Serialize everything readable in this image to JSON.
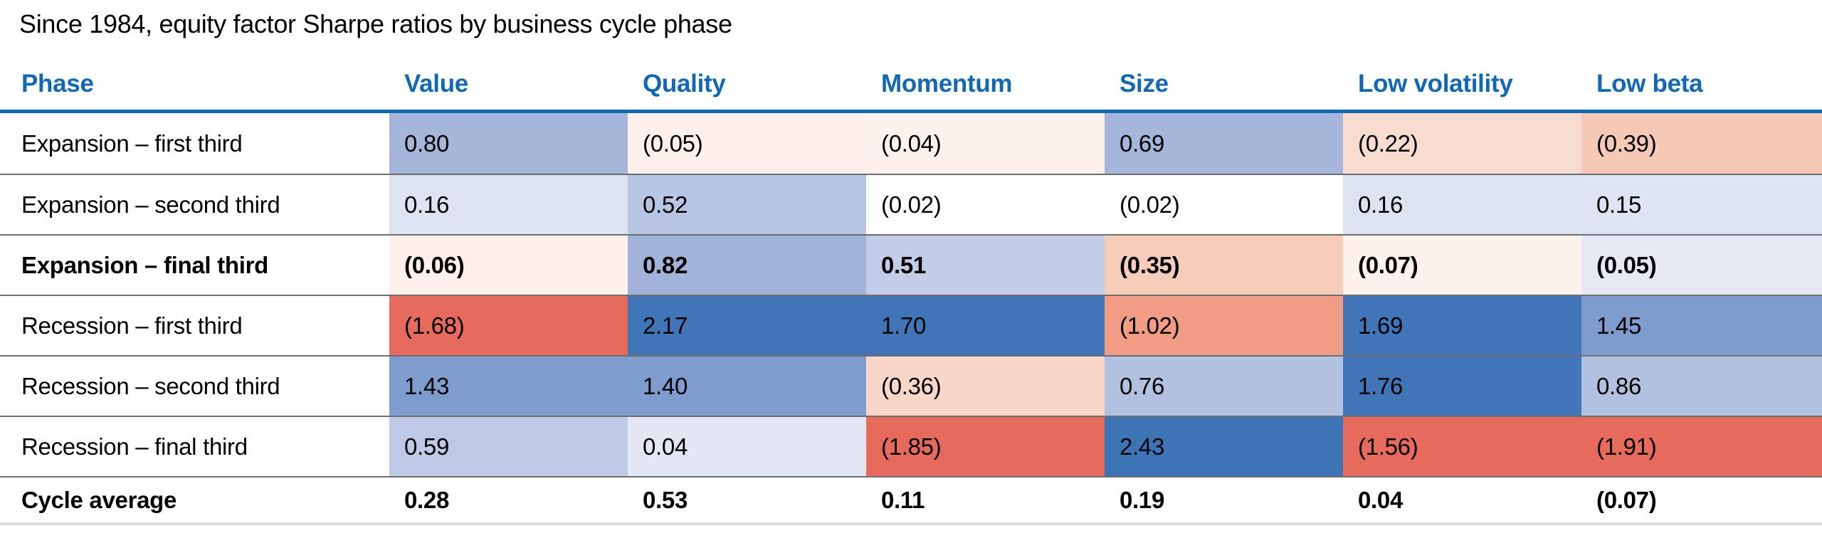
{
  "title": "Since 1984, equity factor Sharpe ratios by business cycle phase",
  "colors": {
    "header_blue": "#1268b3",
    "row_divider": "#6e6e6e",
    "bottom_rule": "#d9d9d9",
    "strong_blue": "#4076b7",
    "strong_red": "#e76b5d"
  },
  "table": {
    "headers": [
      "Phase",
      "Value",
      "Quality",
      "Momentum",
      "Size",
      "Low volatility",
      "Low beta"
    ],
    "rows": [
      {
        "label": "Expansion – first third",
        "bold": false,
        "cells": [
          {
            "value": "0.80",
            "bg": "#a6b6db"
          },
          {
            "value": "(0.05)",
            "bg": "#fdf0ed"
          },
          {
            "value": "(0.04)",
            "bg": "#fdf1ee"
          },
          {
            "value": "0.69",
            "bg": "#a6b6db"
          },
          {
            "value": "(0.22)",
            "bg": "#f8dcd0"
          },
          {
            "value": "(0.39)",
            "bg": "#f5c9b6"
          }
        ]
      },
      {
        "label": "Expansion – second third",
        "bold": false,
        "cells": [
          {
            "value": "0.16",
            "bg": "#dde3f1"
          },
          {
            "value": "0.52",
            "bg": "#b9c5e4"
          },
          {
            "value": "(0.02)",
            "bg": "#ffffff"
          },
          {
            "value": "(0.02)",
            "bg": "#ffffff"
          },
          {
            "value": "0.16",
            "bg": "#dde3f1"
          },
          {
            "value": "0.15",
            "bg": "#dee4f2"
          }
        ]
      },
      {
        "label": "Expansion – final third",
        "bold": true,
        "cells": [
          {
            "value": "(0.06)",
            "bg": "#fdf0ec"
          },
          {
            "value": "0.82",
            "bg": "#a2b3d9"
          },
          {
            "value": "0.51",
            "bg": "#c3cde8"
          },
          {
            "value": "(0.35)",
            "bg": "#f6cdbb"
          },
          {
            "value": "(0.07)",
            "bg": "#fdf1ee"
          },
          {
            "value": "(0.05)",
            "bg": "#e6e9f4"
          }
        ]
      },
      {
        "label": "Recession – first third",
        "bold": false,
        "cells": [
          {
            "value": "(1.68)",
            "bg": "#e76b5d"
          },
          {
            "value": "2.17",
            "bg": "#4076b7"
          },
          {
            "value": "1.70",
            "bg": "#4076b7"
          },
          {
            "value": "(1.02)",
            "bg": "#f19d86"
          },
          {
            "value": "1.69",
            "bg": "#4076b7"
          },
          {
            "value": "1.45",
            "bg": "#7f9cce"
          }
        ]
      },
      {
        "label": "Recession – second third",
        "bold": false,
        "cells": [
          {
            "value": "1.43",
            "bg": "#7f9cce"
          },
          {
            "value": "1.40",
            "bg": "#7f9cce"
          },
          {
            "value": "(0.36)",
            "bg": "#f8d7c8"
          },
          {
            "value": "0.76",
            "bg": "#b3c1e1"
          },
          {
            "value": "1.76",
            "bg": "#4076b7"
          },
          {
            "value": "0.86",
            "bg": "#b3c1e1"
          }
        ]
      },
      {
        "label": "Recession – final third",
        "bold": false,
        "cells": [
          {
            "value": "0.59",
            "bg": "#bec9e6"
          },
          {
            "value": "0.04",
            "bg": "#e3e7f3"
          },
          {
            "value": "(1.85)",
            "bg": "#e76b5d"
          },
          {
            "value": "2.43",
            "bg": "#3c74b6"
          },
          {
            "value": "(1.56)",
            "bg": "#e76b5d"
          },
          {
            "value": "(1.91)",
            "bg": "#e76b5d"
          }
        ]
      },
      {
        "label": "Cycle average",
        "bold": true,
        "cells": [
          {
            "value": "0.28",
            "bg": "#ffffff"
          },
          {
            "value": "0.53",
            "bg": "#ffffff"
          },
          {
            "value": "0.11",
            "bg": "#ffffff"
          },
          {
            "value": "0.19",
            "bg": "#ffffff"
          },
          {
            "value": "0.04",
            "bg": "#ffffff"
          },
          {
            "value": "(0.07)",
            "bg": "#ffffff"
          }
        ]
      }
    ]
  },
  "chart_data": {
    "type": "heatmap",
    "title": "Since 1984, equity factor Sharpe ratios by business cycle phase",
    "columns": [
      "Value",
      "Quality",
      "Momentum",
      "Size",
      "Low volatility",
      "Low beta"
    ],
    "rows": [
      "Expansion – first third",
      "Expansion – second third",
      "Expansion – final third",
      "Recession – first third",
      "Recession – second third",
      "Recession – final third",
      "Cycle average"
    ],
    "values": [
      [
        0.8,
        -0.05,
        -0.04,
        0.69,
        -0.22,
        -0.39
      ],
      [
        0.16,
        0.52,
        -0.02,
        -0.02,
        0.16,
        0.15
      ],
      [
        -0.06,
        0.82,
        0.51,
        -0.35,
        -0.07,
        -0.05
      ],
      [
        -1.68,
        2.17,
        1.7,
        -1.02,
        1.69,
        1.45
      ],
      [
        1.43,
        1.4,
        -0.36,
        0.76,
        1.76,
        0.86
      ],
      [
        0.59,
        0.04,
        -1.85,
        2.43,
        -1.56,
        -1.91
      ],
      [
        0.28,
        0.53,
        0.11,
        0.19,
        0.04,
        -0.07
      ]
    ],
    "notes": "Negative values shown in parentheses; cells shaded blue for high values and red for low values; Cycle average row unshaded"
  }
}
